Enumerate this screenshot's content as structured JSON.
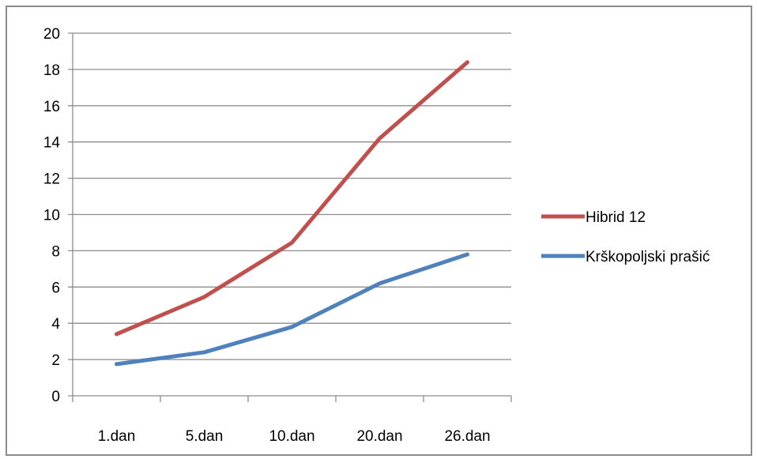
{
  "chart_data": {
    "type": "line",
    "categories": [
      "1.dan",
      "5.dan",
      "10.dan",
      "20.dan",
      "26.dan"
    ],
    "series": [
      {
        "name": "Hibrid 12",
        "values": [
          3.4,
          5.45,
          8.45,
          14.2,
          18.4
        ],
        "color": "#c0504d"
      },
      {
        "name": "Krškopoljski prašić",
        "values": [
          1.75,
          2.4,
          3.8,
          6.2,
          7.8
        ],
        "color": "#4f81bd"
      }
    ],
    "ylim": [
      0,
      20
    ],
    "yticks": [
      "0",
      "2",
      "4",
      "6",
      "8",
      "10",
      "12",
      "14",
      "16",
      "18",
      "20"
    ],
    "grid": true,
    "legend": "right",
    "colors": {
      "grid": "#8c8c8c",
      "axis": "#8c8c8c",
      "frame": "#8c8c8c"
    }
  }
}
